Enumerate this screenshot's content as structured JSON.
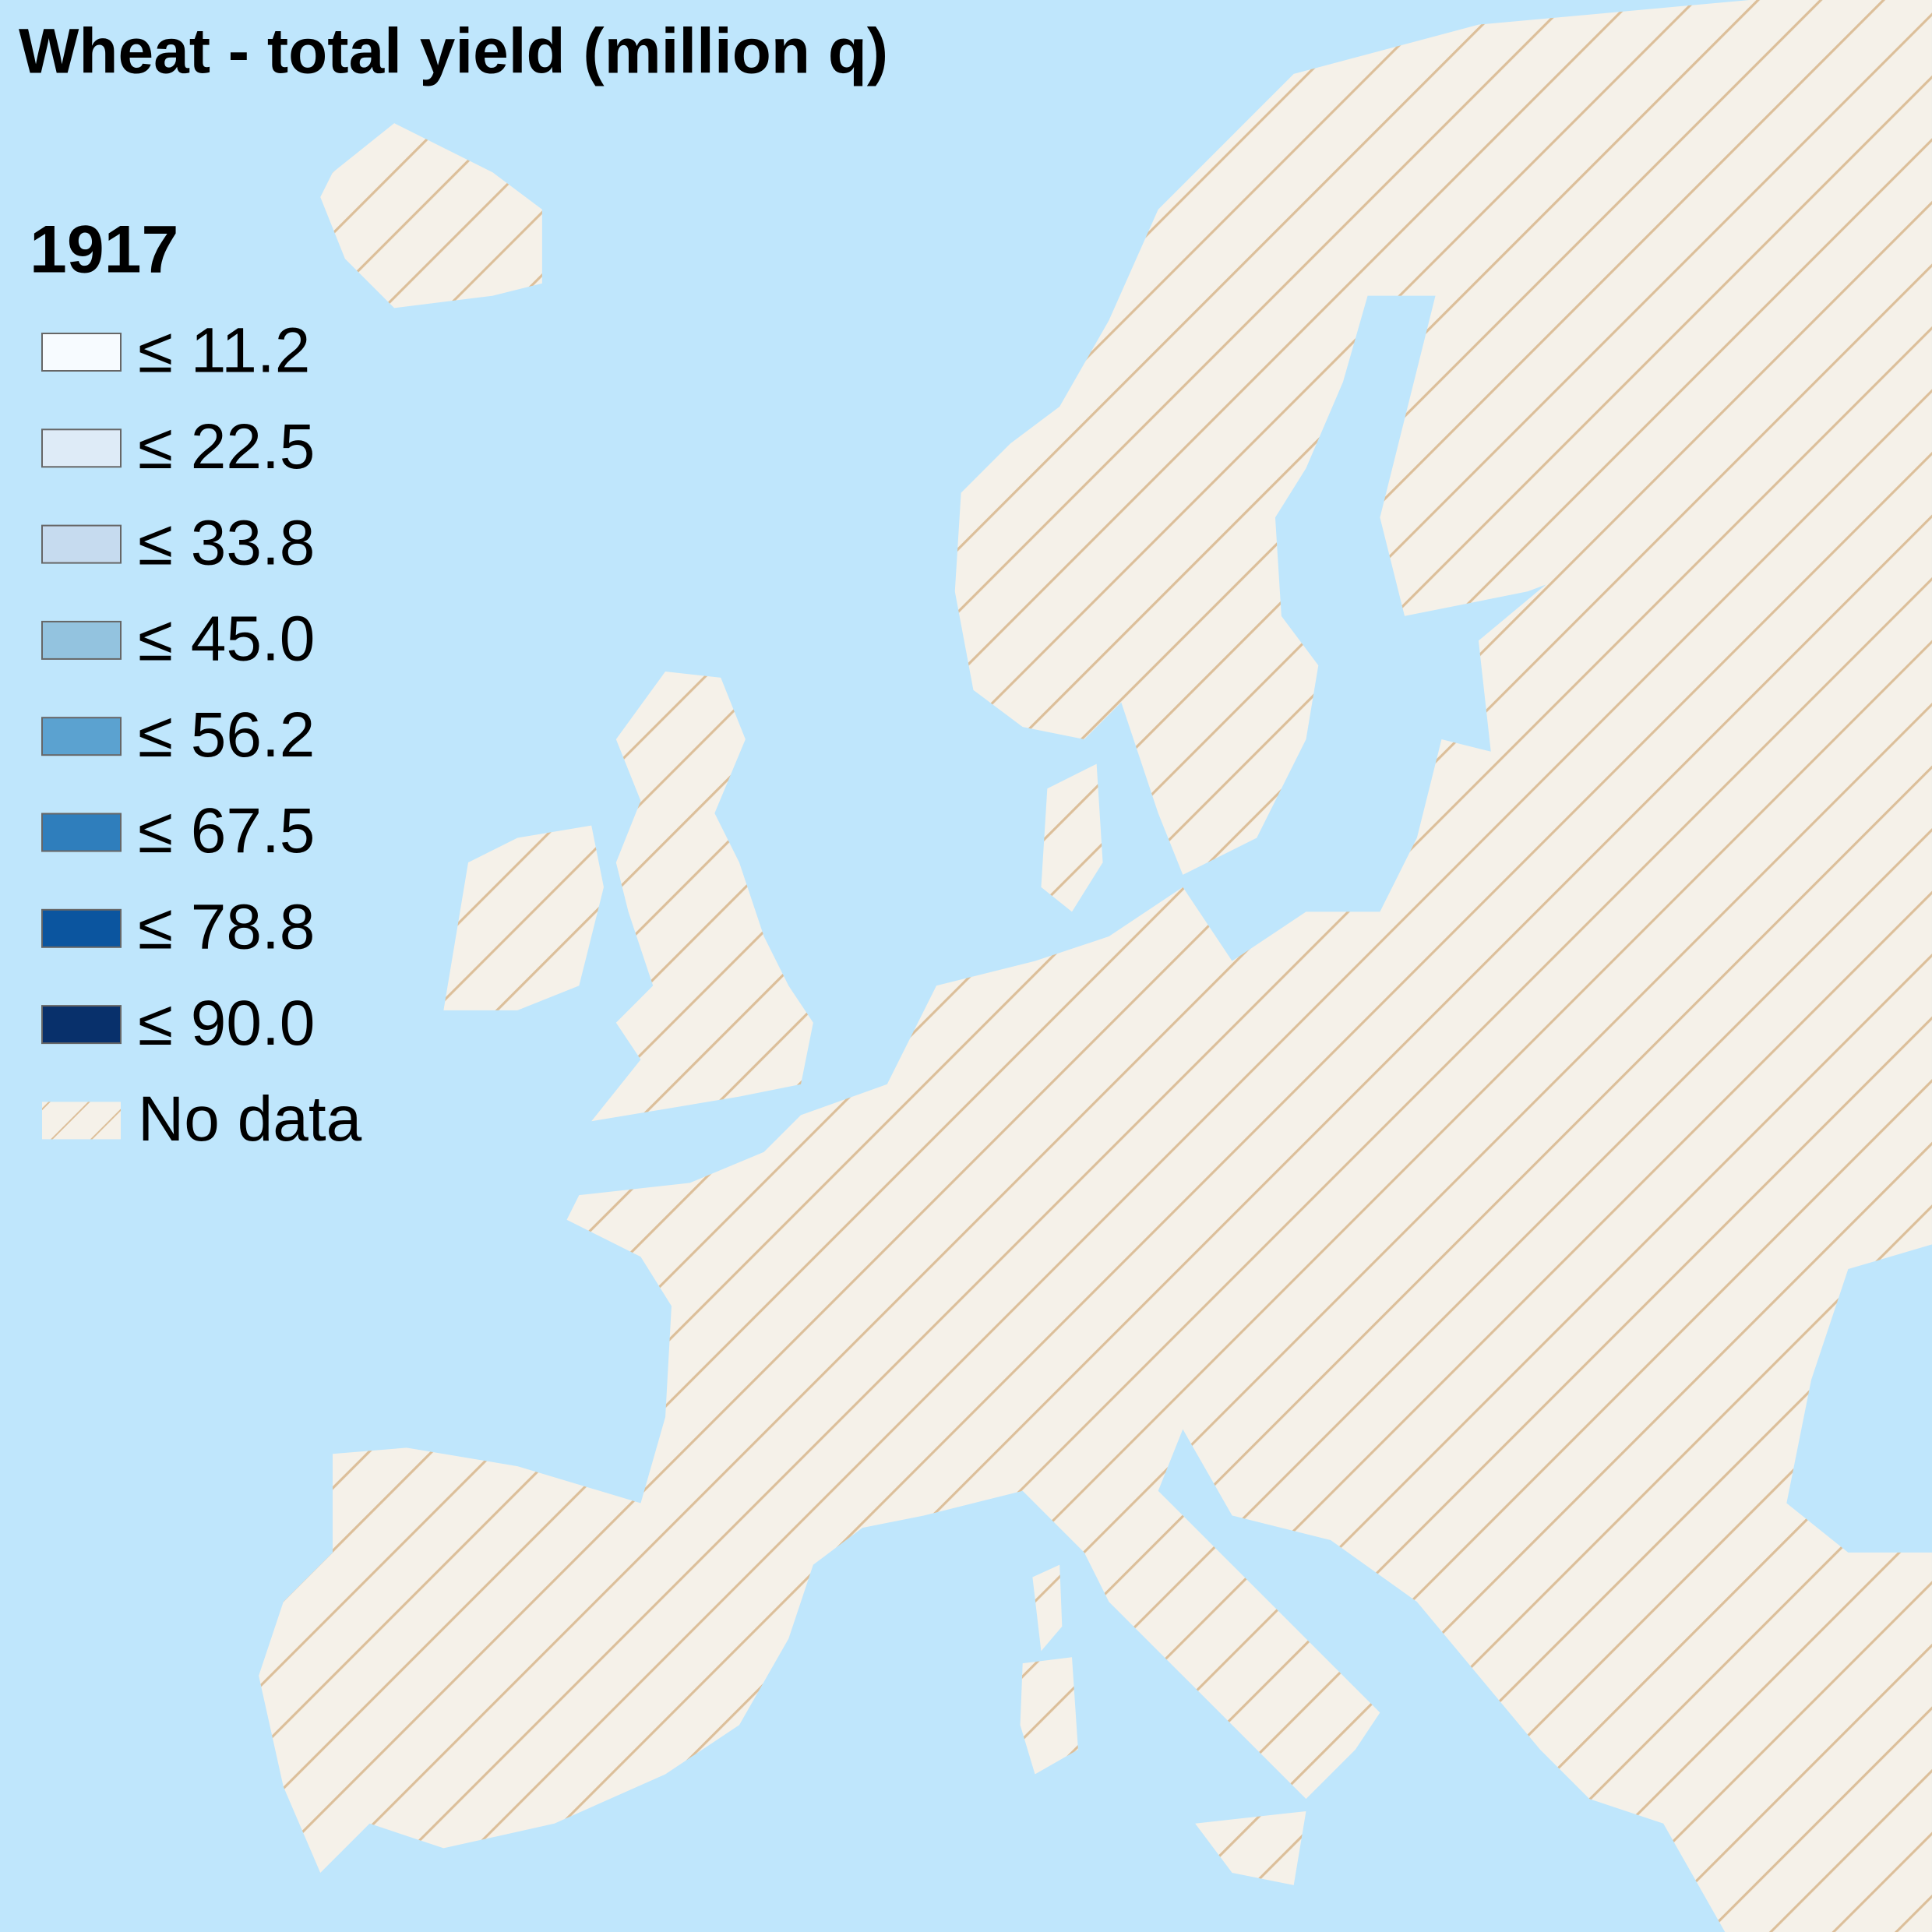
{
  "title": "Wheat - total yield (million q)",
  "legend": {
    "title": "1917",
    "items": [
      {
        "label": "≤ 11.2",
        "color": "#f7fbff"
      },
      {
        "label": "≤ 22.5",
        "color": "#deebf7"
      },
      {
        "label": "≤ 33.8",
        "color": "#c6dbef"
      },
      {
        "label": "≤ 45.0",
        "color": "#93c3df"
      },
      {
        "label": "≤ 56.2",
        "color": "#5ba2d0"
      },
      {
        "label": "≤ 67.5",
        "color": "#2f7ebc"
      },
      {
        "label": "≤ 78.8",
        "color": "#0b559f"
      },
      {
        "label": "≤ 90.0",
        "color": "#08306b"
      }
    ],
    "no_data": {
      "label": "No data"
    }
  }
}
